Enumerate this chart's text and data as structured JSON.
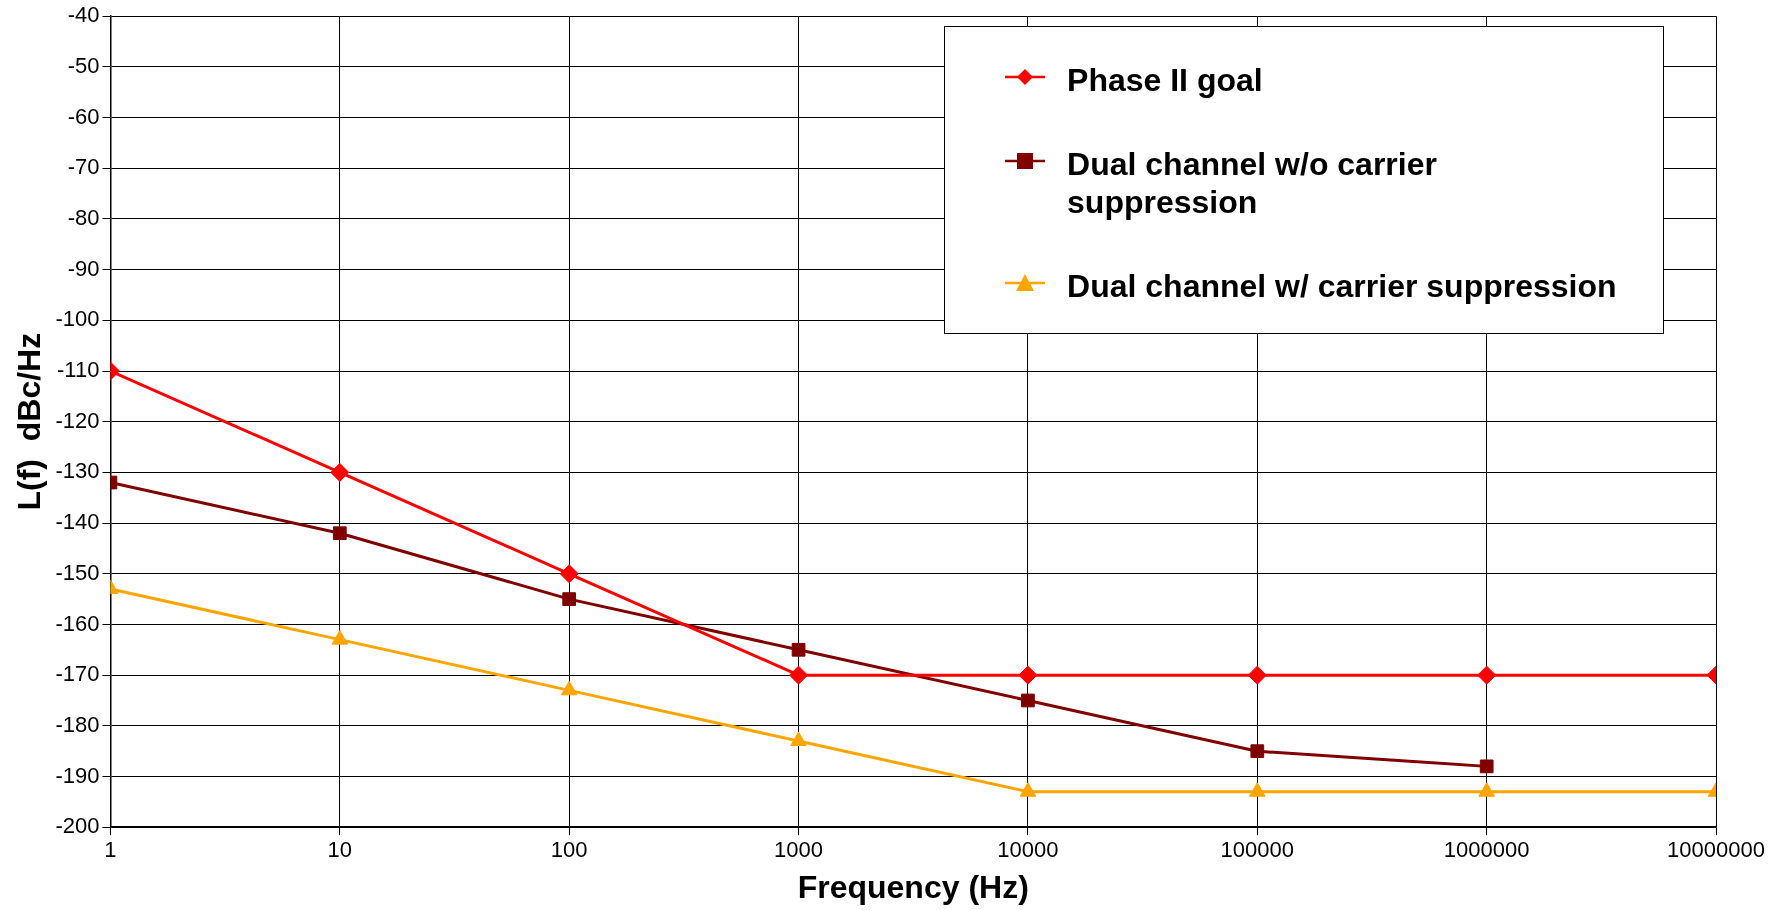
{
  "chart_data": {
    "type": "line",
    "xlabel": "Frequency (Hz)",
    "ylabel": "L(f)  dBc/Hz",
    "log": "x",
    "xlim": [
      1,
      10000000
    ],
    "xticks": [
      1,
      10,
      100,
      1000,
      10000,
      100000,
      1000000,
      10000000
    ],
    "ylim": [
      -200,
      -40
    ],
    "yticks": [
      -200,
      -190,
      -180,
      -170,
      -160,
      -150,
      -140,
      -130,
      -120,
      -110,
      -100,
      -90,
      -80,
      -70,
      -60,
      -50,
      -40
    ],
    "grid": true,
    "legend": "top right",
    "line_style": "solid",
    "series": [
      {
        "name": "Phase II goal",
        "color": "#ff0000",
        "marker": "diamond",
        "x": [
          1,
          10,
          100,
          1000,
          10000,
          100000,
          1000000,
          10000000
        ],
        "values": [
          -110,
          -130,
          -150,
          -170,
          -170,
          -170,
          -170,
          -170
        ]
      },
      {
        "name": "Dual channel w/o carrier suppression",
        "color": "#800000",
        "marker": "square",
        "x": [
          1,
          10,
          100,
          1000,
          10000,
          100000,
          1000000
        ],
        "values": [
          -132,
          -142,
          -155,
          -165,
          -175,
          -185,
          -188
        ]
      },
      {
        "name": "Dual channel w/ carrier suppression",
        "color": "#ffa500",
        "marker": "triangle",
        "x": [
          1,
          10,
          100,
          1000,
          10000,
          100000,
          1000000,
          10000000
        ],
        "values": [
          -153,
          -163,
          -173,
          -183,
          -193,
          -193,
          -193,
          -193
        ]
      }
    ]
  }
}
